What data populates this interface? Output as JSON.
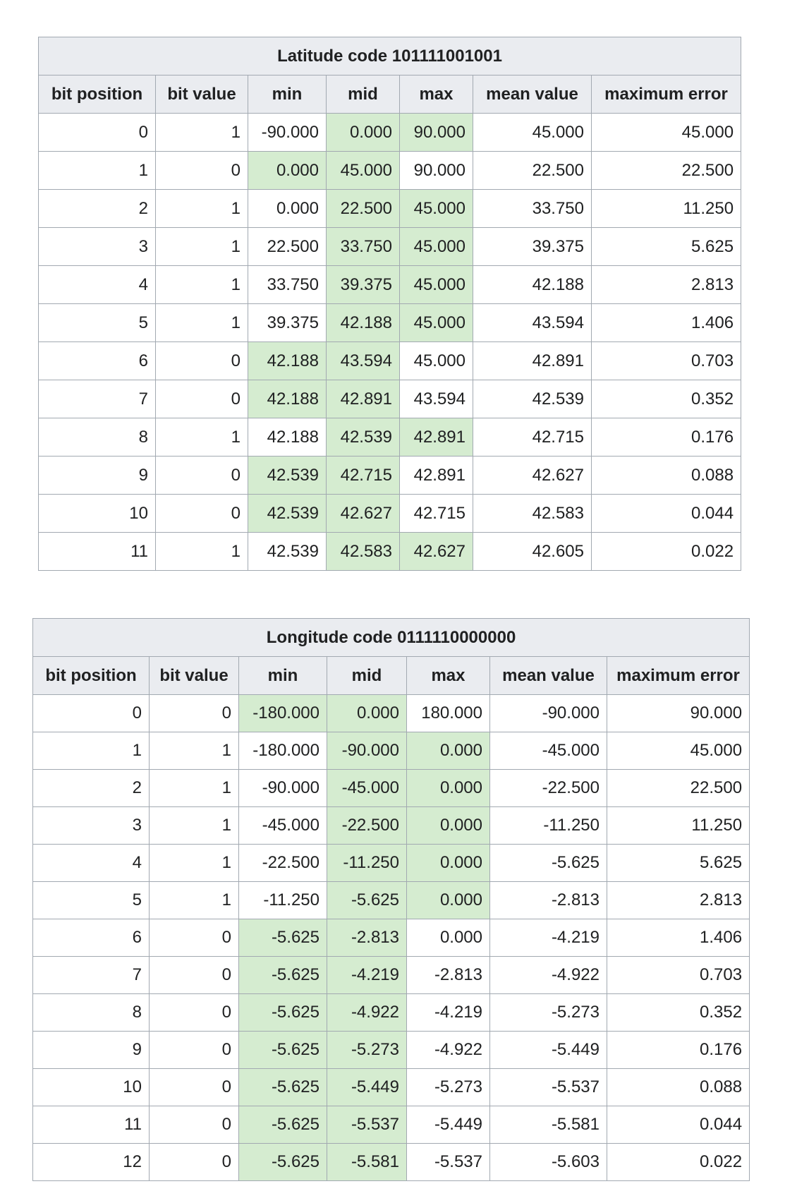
{
  "latitude": {
    "title": "Latitude code 101111001001",
    "headers": [
      "bit position",
      "bit value",
      "min",
      "mid",
      "max",
      "mean value",
      "maximum error"
    ],
    "rows": [
      [
        "0",
        "1",
        "-90.000",
        "0.000",
        "90.000",
        "45.000",
        "45.000"
      ],
      [
        "1",
        "0",
        "0.000",
        "45.000",
        "90.000",
        "22.500",
        "22.500"
      ],
      [
        "2",
        "1",
        "0.000",
        "22.500",
        "45.000",
        "33.750",
        "11.250"
      ],
      [
        "3",
        "1",
        "22.500",
        "33.750",
        "45.000",
        "39.375",
        "5.625"
      ],
      [
        "4",
        "1",
        "33.750",
        "39.375",
        "45.000",
        "42.188",
        "2.813"
      ],
      [
        "5",
        "1",
        "39.375",
        "42.188",
        "45.000",
        "43.594",
        "1.406"
      ],
      [
        "6",
        "0",
        "42.188",
        "43.594",
        "45.000",
        "42.891",
        "0.703"
      ],
      [
        "7",
        "0",
        "42.188",
        "42.891",
        "43.594",
        "42.539",
        "0.352"
      ],
      [
        "8",
        "1",
        "42.188",
        "42.539",
        "42.891",
        "42.715",
        "0.176"
      ],
      [
        "9",
        "0",
        "42.539",
        "42.715",
        "42.891",
        "42.627",
        "0.088"
      ],
      [
        "10",
        "0",
        "42.539",
        "42.627",
        "42.715",
        "42.583",
        "0.044"
      ],
      [
        "11",
        "1",
        "42.539",
        "42.583",
        "42.627",
        "42.605",
        "0.022"
      ]
    ]
  },
  "longitude": {
    "title": "Longitude code 0111110000000",
    "headers": [
      "bit position",
      "bit value",
      "min",
      "mid",
      "max",
      "mean value",
      "maximum error"
    ],
    "rows": [
      [
        "0",
        "0",
        "-180.000",
        "0.000",
        "180.000",
        "-90.000",
        "90.000"
      ],
      [
        "1",
        "1",
        "-180.000",
        "-90.000",
        "0.000",
        "-45.000",
        "45.000"
      ],
      [
        "2",
        "1",
        "-90.000",
        "-45.000",
        "0.000",
        "-22.500",
        "22.500"
      ],
      [
        "3",
        "1",
        "-45.000",
        "-22.500",
        "0.000",
        "-11.250",
        "11.250"
      ],
      [
        "4",
        "1",
        "-22.500",
        "-11.250",
        "0.000",
        "-5.625",
        "5.625"
      ],
      [
        "5",
        "1",
        "-11.250",
        "-5.625",
        "0.000",
        "-2.813",
        "2.813"
      ],
      [
        "6",
        "0",
        "-5.625",
        "-2.813",
        "0.000",
        "-4.219",
        "1.406"
      ],
      [
        "7",
        "0",
        "-5.625",
        "-4.219",
        "-2.813",
        "-4.922",
        "0.703"
      ],
      [
        "8",
        "0",
        "-5.625",
        "-4.922",
        "-4.219",
        "-5.273",
        "0.352"
      ],
      [
        "9",
        "0",
        "-5.625",
        "-5.273",
        "-4.922",
        "-5.449",
        "0.176"
      ],
      [
        "10",
        "0",
        "-5.625",
        "-5.449",
        "-5.273",
        "-5.537",
        "0.088"
      ],
      [
        "11",
        "0",
        "-5.625",
        "-5.537",
        "-5.449",
        "-5.581",
        "0.044"
      ],
      [
        "12",
        "0",
        "-5.625",
        "-5.581",
        "-5.537",
        "-5.603",
        "0.022"
      ]
    ]
  },
  "colors": {
    "highlight": "#d5ecd0",
    "header_bg": "#eaecf0",
    "border": "#a2a9b1"
  }
}
